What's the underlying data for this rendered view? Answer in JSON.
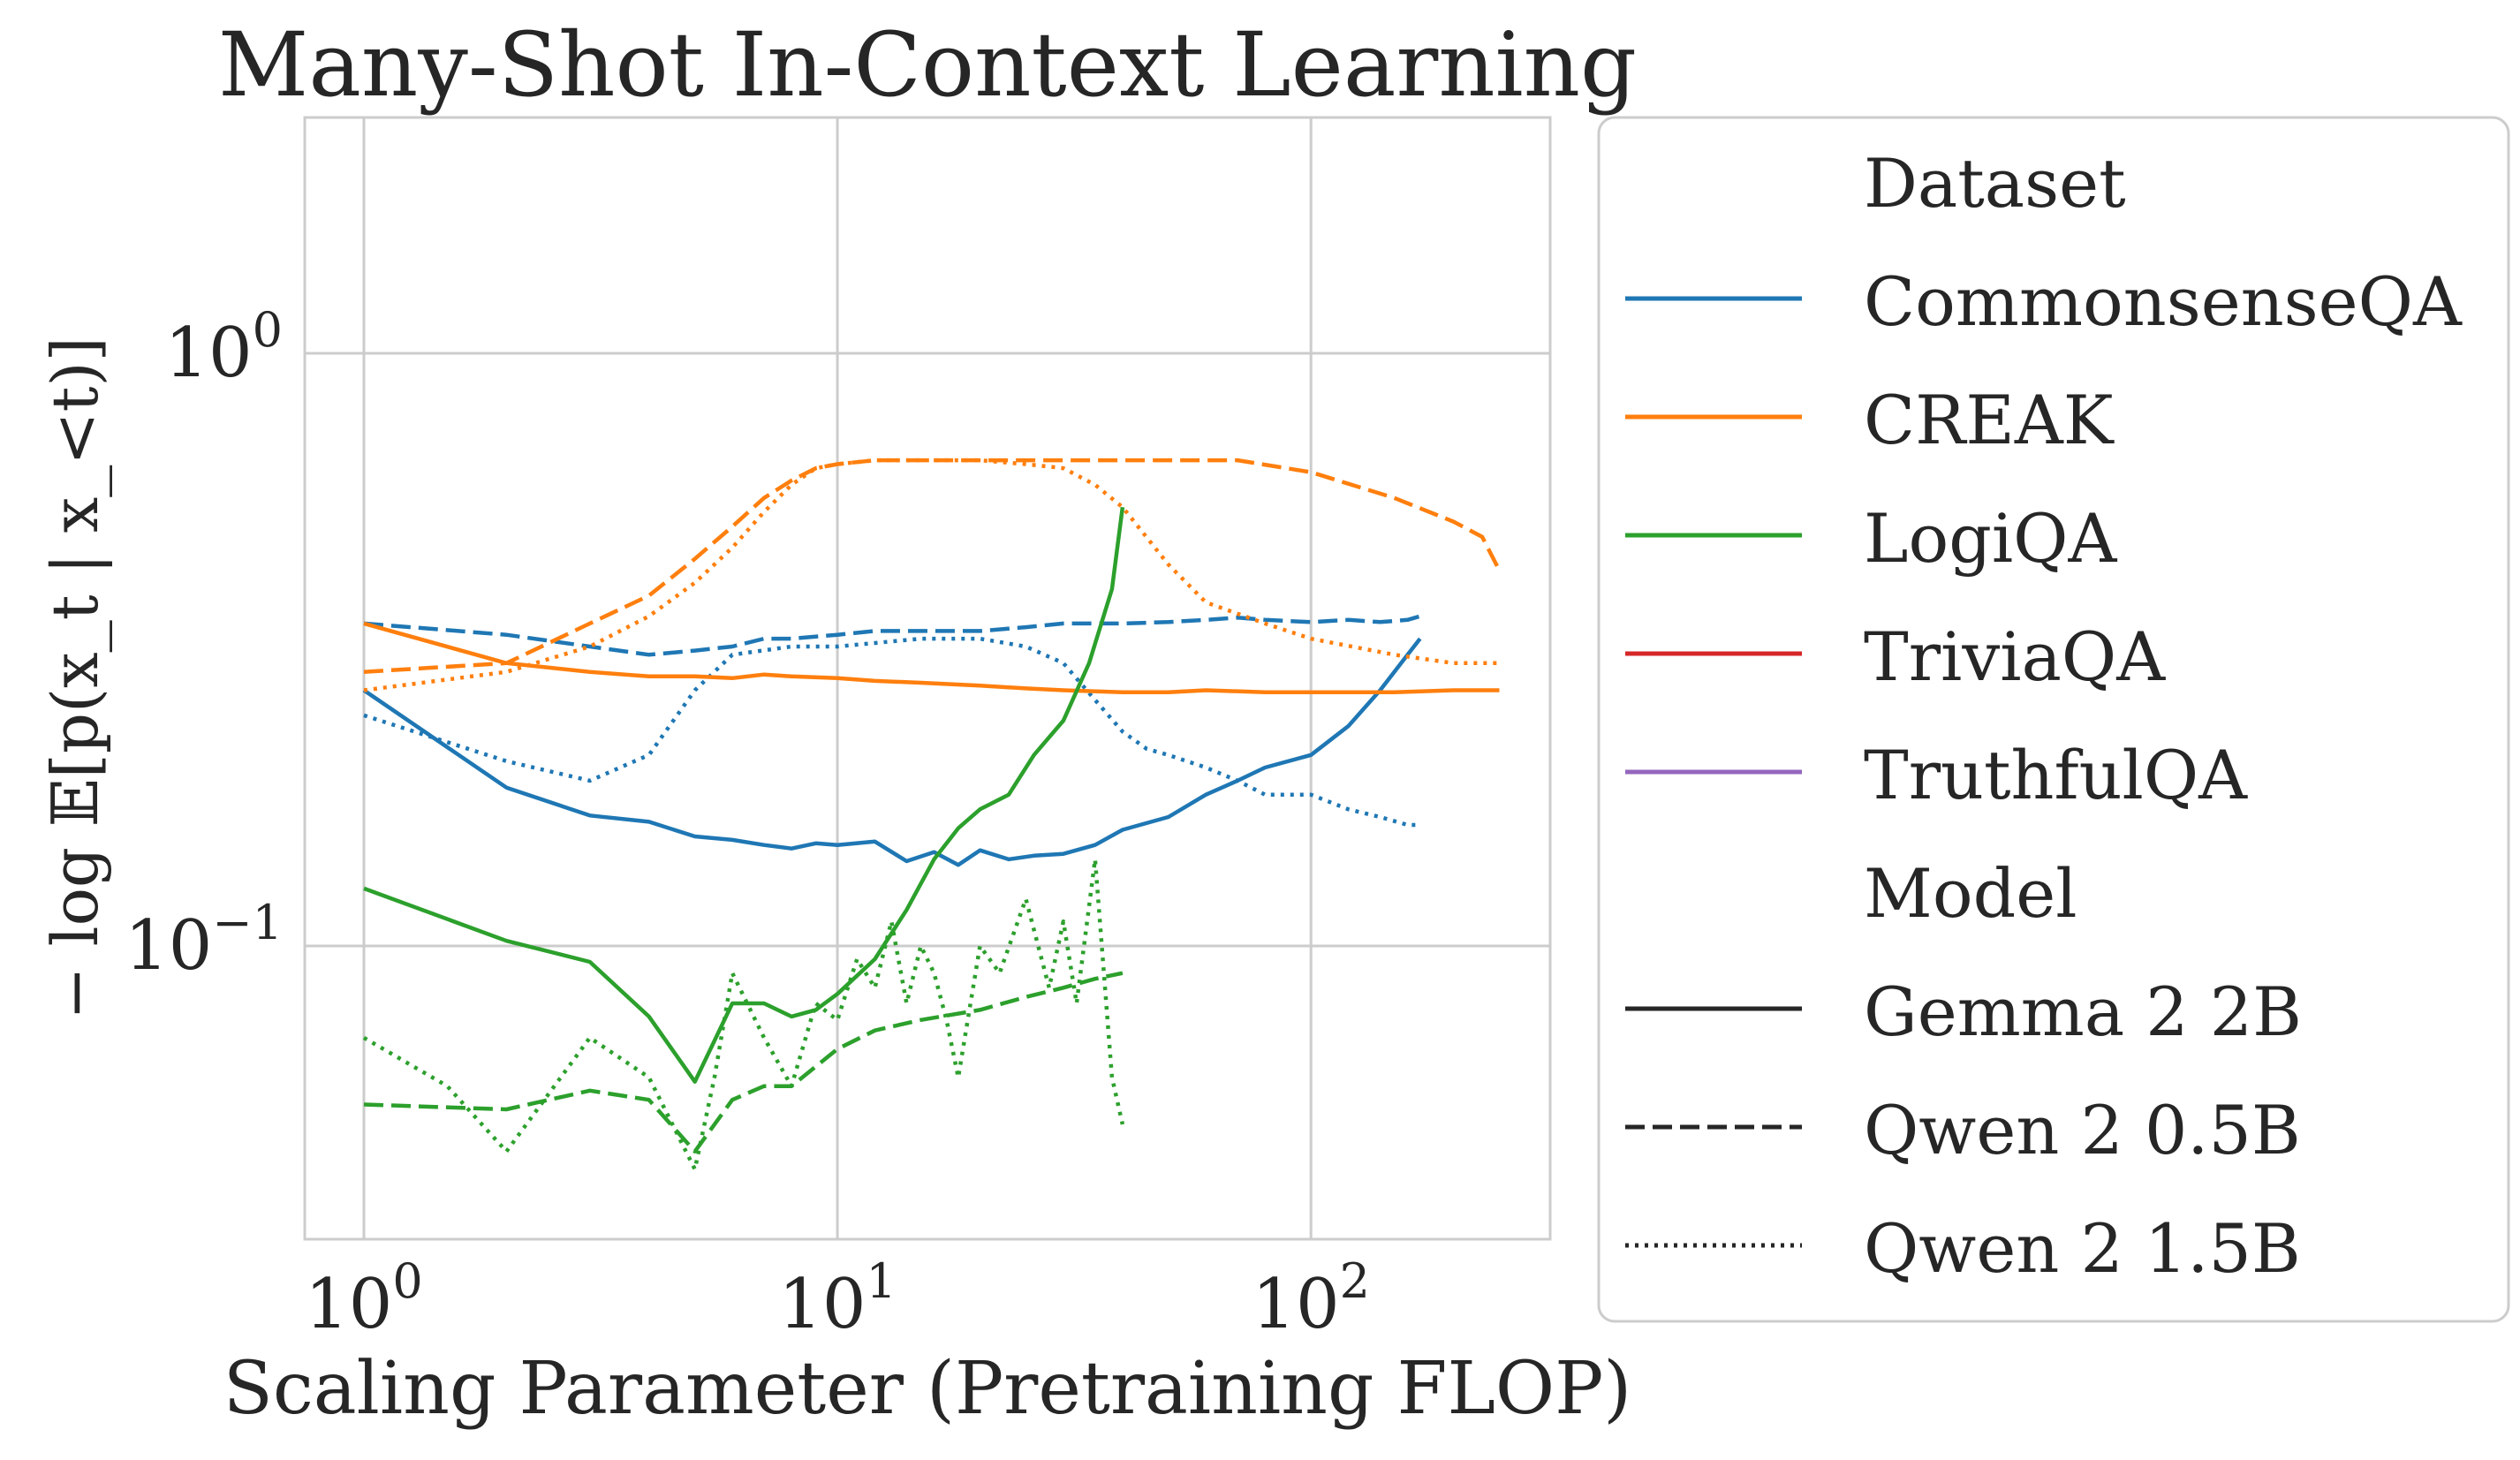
{
  "chart_data": {
    "type": "line",
    "title": "Many-Shot In-Context Learning",
    "xlabel": "Scaling Parameter (Pretraining FLOP)",
    "ylabel": "− log 𝔼[p(x_t | x_<t)]",
    "x_scale": "log",
    "y_scale": "log",
    "xlim": [
      0.75,
      320
    ],
    "ylim": [
      0.032,
      2.5
    ],
    "x_ticks": [
      {
        "value": 1,
        "label": "10^0"
      },
      {
        "value": 10,
        "label": "10^1"
      },
      {
        "value": 100,
        "label": "10^2"
      }
    ],
    "y_ticks": [
      {
        "value": 1,
        "label": "10^0"
      },
      {
        "value": 0.1,
        "label": "10^−1"
      }
    ],
    "grid": true,
    "legend": {
      "placement": "outside-right",
      "dataset_title": "Dataset",
      "model_title": "Model",
      "datasets": [
        {
          "name": "CommonsenseQA",
          "color": "#1f77b4"
        },
        {
          "name": "CREAK",
          "color": "#ff7f0e"
        },
        {
          "name": "LogiQA",
          "color": "#2ca02c"
        },
        {
          "name": "TriviaQA",
          "color": "#d62728"
        },
        {
          "name": "TruthfulQA",
          "color": "#9467bd"
        }
      ],
      "models": [
        {
          "name": "Gemma 2 2B",
          "style": "solid"
        },
        {
          "name": "Qwen 2 0.5B",
          "style": "dashed"
        },
        {
          "name": "Qwen 2 1.5B",
          "style": "dotted"
        }
      ]
    },
    "series": [
      {
        "dataset": "CommonsenseQA",
        "model": "Gemma 2 2B",
        "color": "#1f77b4",
        "style": "solid",
        "x": [
          1,
          2,
          3,
          4,
          5,
          6,
          7,
          8,
          9,
          10,
          12,
          14,
          16,
          18,
          20,
          23,
          26,
          30,
          35,
          40,
          50,
          60,
          70,
          80,
          100,
          120,
          140,
          160,
          170
        ],
        "y": [
          0.27,
          0.185,
          0.166,
          0.162,
          0.153,
          0.151,
          0.148,
          0.146,
          0.149,
          0.148,
          0.15,
          0.139,
          0.144,
          0.137,
          0.145,
          0.14,
          0.142,
          0.143,
          0.148,
          0.157,
          0.165,
          0.18,
          0.19,
          0.2,
          0.21,
          0.235,
          0.27,
          0.31,
          0.33
        ]
      },
      {
        "dataset": "CommonsenseQA",
        "model": "Qwen 2 0.5B",
        "color": "#1f77b4",
        "style": "dashed",
        "x": [
          1,
          2,
          3,
          4,
          5,
          6,
          7,
          8,
          10,
          12,
          15,
          20,
          25,
          30,
          40,
          50,
          60,
          70,
          80,
          100,
          120,
          140,
          160,
          170
        ],
        "y": [
          0.35,
          0.335,
          0.32,
          0.31,
          0.315,
          0.32,
          0.33,
          0.33,
          0.335,
          0.34,
          0.34,
          0.34,
          0.345,
          0.35,
          0.35,
          0.352,
          0.355,
          0.358,
          0.355,
          0.352,
          0.355,
          0.352,
          0.355,
          0.36
        ]
      },
      {
        "dataset": "CommonsenseQA",
        "model": "Qwen 2 1.5B",
        "color": "#1f77b4",
        "style": "dotted",
        "x": [
          1,
          2,
          3,
          4,
          5,
          6,
          8,
          10,
          15,
          20,
          25,
          30,
          35,
          40,
          45,
          50,
          60,
          70,
          80,
          100,
          120,
          140,
          160,
          170
        ],
        "y": [
          0.245,
          0.205,
          0.19,
          0.21,
          0.27,
          0.31,
          0.32,
          0.32,
          0.33,
          0.33,
          0.32,
          0.3,
          0.26,
          0.23,
          0.215,
          0.21,
          0.2,
          0.19,
          0.18,
          0.18,
          0.17,
          0.165,
          0.16,
          0.16
        ]
      },
      {
        "dataset": "CREAK",
        "model": "Gemma 2 2B",
        "color": "#ff7f0e",
        "style": "solid",
        "x": [
          1,
          2,
          3,
          4,
          5,
          6,
          7,
          8,
          10,
          12,
          15,
          20,
          25,
          30,
          40,
          50,
          60,
          80,
          100,
          150,
          200,
          250
        ],
        "y": [
          0.35,
          0.3,
          0.29,
          0.285,
          0.285,
          0.283,
          0.287,
          0.285,
          0.283,
          0.28,
          0.278,
          0.275,
          0.272,
          0.27,
          0.268,
          0.268,
          0.27,
          0.268,
          0.268,
          0.268,
          0.27,
          0.27
        ]
      },
      {
        "dataset": "CREAK",
        "model": "Qwen 2 0.5B",
        "color": "#ff7f0e",
        "style": "dashed",
        "x": [
          1,
          2,
          3,
          4,
          5,
          6,
          7,
          8,
          9,
          10,
          12,
          15,
          20,
          30,
          50,
          70,
          100,
          150,
          200,
          230,
          250
        ],
        "y": [
          0.29,
          0.3,
          0.35,
          0.39,
          0.45,
          0.51,
          0.57,
          0.61,
          0.64,
          0.65,
          0.66,
          0.66,
          0.66,
          0.66,
          0.66,
          0.66,
          0.63,
          0.57,
          0.52,
          0.49,
          0.43
        ]
      },
      {
        "dataset": "CREAK",
        "model": "Qwen 2 1.5B",
        "color": "#ff7f0e",
        "style": "dotted",
        "x": [
          1,
          2,
          3,
          4,
          5,
          6,
          7,
          8,
          9,
          10,
          12,
          15,
          20,
          25,
          30,
          35,
          40,
          50,
          60,
          80,
          100,
          150,
          200,
          250
        ],
        "y": [
          0.27,
          0.29,
          0.32,
          0.36,
          0.41,
          0.47,
          0.54,
          0.6,
          0.64,
          0.65,
          0.66,
          0.66,
          0.66,
          0.65,
          0.64,
          0.6,
          0.55,
          0.44,
          0.38,
          0.35,
          0.33,
          0.31,
          0.3,
          0.3
        ]
      },
      {
        "dataset": "LogiQA",
        "model": "Gemma 2 2B",
        "color": "#2ca02c",
        "style": "solid",
        "x": [
          1,
          2,
          3,
          4,
          5,
          6,
          7,
          8,
          9,
          10,
          12,
          14,
          16,
          18,
          20,
          23,
          26,
          30,
          34,
          38,
          40
        ],
        "y": [
          0.125,
          0.102,
          0.094,
          0.076,
          0.059,
          0.08,
          0.08,
          0.076,
          0.078,
          0.083,
          0.095,
          0.115,
          0.14,
          0.158,
          0.17,
          0.18,
          0.21,
          0.24,
          0.3,
          0.4,
          0.55
        ]
      },
      {
        "dataset": "LogiQA",
        "model": "Qwen 2 0.5B",
        "color": "#2ca02c",
        "style": "dashed",
        "x": [
          1,
          2,
          3,
          4,
          5,
          6,
          7,
          8,
          10,
          12,
          15,
          20,
          25,
          30,
          35,
          40
        ],
        "y": [
          0.054,
          0.053,
          0.057,
          0.055,
          0.045,
          0.055,
          0.058,
          0.058,
          0.067,
          0.072,
          0.075,
          0.078,
          0.082,
          0.085,
          0.088,
          0.09
        ]
      },
      {
        "dataset": "LogiQA",
        "model": "Qwen 2 1.5B",
        "color": "#2ca02c",
        "style": "dotted",
        "x": [
          1,
          1.5,
          2,
          3,
          4,
          5,
          5.5,
          6,
          7,
          8,
          9,
          10,
          11,
          12,
          13,
          14,
          15,
          16,
          17,
          18,
          20,
          22,
          25,
          28,
          30,
          32,
          35,
          38,
          40
        ],
        "y": [
          0.07,
          0.058,
          0.045,
          0.07,
          0.06,
          0.042,
          0.06,
          0.09,
          0.07,
          0.058,
          0.08,
          0.075,
          0.095,
          0.085,
          0.11,
          0.08,
          0.1,
          0.09,
          0.075,
          0.06,
          0.1,
          0.09,
          0.12,
          0.085,
          0.11,
          0.08,
          0.14,
          0.06,
          0.05
        ]
      }
    ]
  }
}
